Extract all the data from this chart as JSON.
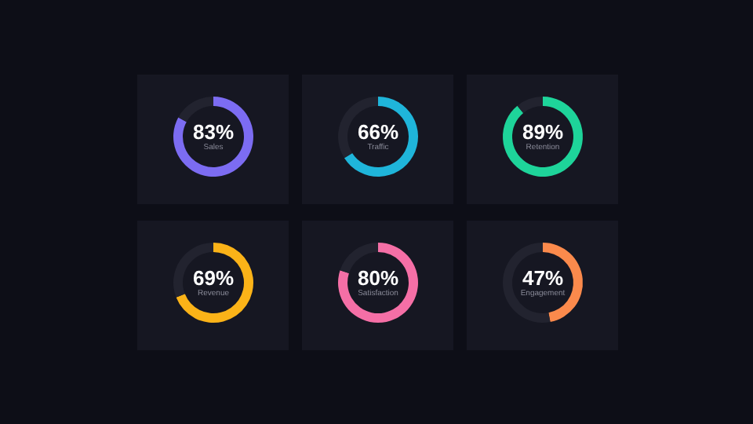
{
  "chart_data": [
    {
      "type": "donut",
      "title": "Sales",
      "categories": [
        null,
        null
      ],
      "values": [
        83,
        17
      ],
      "colors": [
        "#7c6cf2",
        "#22232f"
      ],
      "value_labels": [
        "83%",
        null
      ]
    },
    {
      "type": "donut",
      "title": "Traffic",
      "categories": [
        null,
        null
      ],
      "values": [
        66,
        34
      ],
      "colors": [
        "#1fb5da",
        "#22232f"
      ],
      "value_labels": [
        "66%",
        null
      ]
    },
    {
      "type": "donut",
      "title": "Retention",
      "categories": [
        null,
        null
      ],
      "values": [
        89,
        11
      ],
      "colors": [
        "#1ed49a",
        "#22232f"
      ],
      "value_labels": [
        "89%",
        null
      ]
    },
    {
      "type": "donut",
      "title": "Revenue",
      "categories": [
        null,
        null
      ],
      "values": [
        69,
        31
      ],
      "colors": [
        "#fbb318",
        "#22232f"
      ],
      "value_labels": [
        "69%",
        null
      ]
    },
    {
      "type": "donut",
      "title": "Satisfaction",
      "categories": [
        null,
        null
      ],
      "values": [
        80,
        20
      ],
      "colors": [
        "#f56fa6",
        "#22232f"
      ],
      "value_labels": [
        "80%",
        null
      ]
    },
    {
      "type": "donut",
      "title": "Engagement",
      "categories": [
        null,
        null
      ],
      "values": [
        47,
        53
      ],
      "colors": [
        "#fb8a4c",
        "#22232f"
      ],
      "value_labels": [
        "47%",
        null
      ]
    }
  ]
}
